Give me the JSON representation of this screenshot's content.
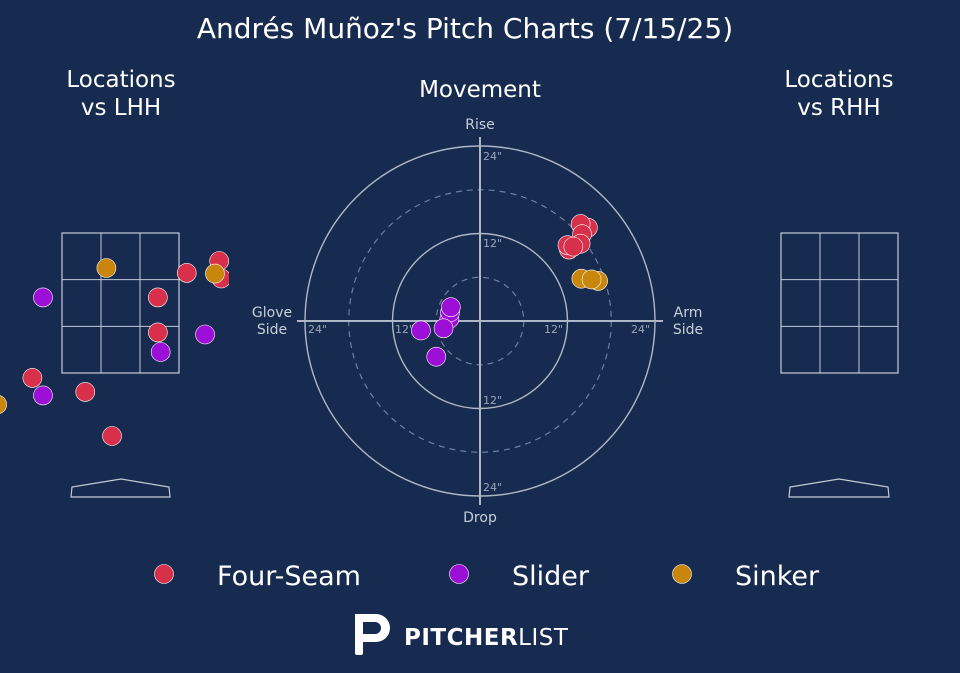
{
  "title": "Andrés Muñoz's Pitch Charts (7/15/25)",
  "colors": {
    "background": "#162b4f",
    "Four-Seam": "#d8304a",
    "Slider": "#9b0fd6",
    "Sinker": "#c8860c",
    "grid": "#c4cbd6",
    "label": "#c8cfdb"
  },
  "panels": {
    "lhh_title_line1": "Locations",
    "lhh_title_line2": "vs LHH",
    "movement_title": "Movement",
    "rhh_title_line1": "Locations",
    "rhh_title_line2": "vs RHH"
  },
  "movement_axes": {
    "top": "Rise",
    "bottom": "Drop",
    "left_line1": "Glove",
    "left_line2": "Side",
    "right_line1": "Arm",
    "right_line2": "Side",
    "rings_labels": [
      "12\"",
      "24\""
    ]
  },
  "legend": {
    "items": [
      {
        "name": "Four-Seam",
        "color": "#d8304a"
      },
      {
        "name": "Slider",
        "color": "#9b0fd6"
      },
      {
        "name": "Sinker",
        "color": "#c8860c"
      }
    ]
  },
  "brand": {
    "bold": "PITCHER",
    "light": "LIST"
  },
  "chart_data": [
    {
      "type": "scatter",
      "panel": "Locations vs LHH",
      "x_range": [
        -2.0,
        2.0
      ],
      "z_range": [
        -0.5,
        4.6
      ],
      "strike_zone": {
        "x": [
          -0.83,
          0.83
        ],
        "z": [
          1.5,
          3.5
        ]
      },
      "points": [
        {
          "pitch": "Four-Seam",
          "x": 1.4,
          "z": 3.1
        },
        {
          "pitch": "Four-Seam",
          "x": 1.43,
          "z": 2.85
        },
        {
          "pitch": "Four-Seam",
          "x": 0.94,
          "z": 2.93
        },
        {
          "pitch": "Four-Seam",
          "x": 0.53,
          "z": 2.58
        },
        {
          "pitch": "Four-Seam",
          "x": 0.53,
          "z": 2.08
        },
        {
          "pitch": "Four-Seam",
          "x": -1.25,
          "z": 1.43
        },
        {
          "pitch": "Four-Seam",
          "x": -0.5,
          "z": 1.23
        },
        {
          "pitch": "Four-Seam",
          "x": -0.12,
          "z": 0.6
        },
        {
          "pitch": "Slider",
          "x": -1.1,
          "z": 2.58
        },
        {
          "pitch": "Slider",
          "x": 1.2,
          "z": 2.05
        },
        {
          "pitch": "Slider",
          "x": 0.57,
          "z": 1.8
        },
        {
          "pitch": "Slider",
          "x": -1.1,
          "z": 1.18
        },
        {
          "pitch": "Sinker",
          "x": -0.2,
          "z": 3.0
        },
        {
          "pitch": "Sinker",
          "x": 1.34,
          "z": 2.92
        },
        {
          "pitch": "Sinker",
          "x": -1.75,
          "z": 1.05
        }
      ]
    },
    {
      "type": "scatter",
      "panel": "Movement",
      "x_label_left": "Glove Side",
      "x_label_right": "Arm Side",
      "y_label_top": "Rise",
      "y_label_bottom": "Drop",
      "range_inches": [
        -24,
        24
      ],
      "rings_inches": [
        6,
        12,
        18,
        24
      ],
      "points": [
        {
          "pitch": "Four-Seam",
          "x": 14.8,
          "y": 12.8
        },
        {
          "pitch": "Four-Seam",
          "x": 13.8,
          "y": 13.3
        },
        {
          "pitch": "Four-Seam",
          "x": 14.0,
          "y": 11.9
        },
        {
          "pitch": "Four-Seam",
          "x": 13.8,
          "y": 10.6
        },
        {
          "pitch": "Four-Seam",
          "x": 12.2,
          "y": 9.8
        },
        {
          "pitch": "Four-Seam",
          "x": 12.0,
          "y": 10.4
        },
        {
          "pitch": "Four-Seam",
          "x": 12.8,
          "y": 10.2
        },
        {
          "pitch": "Slider",
          "x": -4.2,
          "y": 0.3
        },
        {
          "pitch": "Slider",
          "x": -4.1,
          "y": 1.2
        },
        {
          "pitch": "Slider",
          "x": -4.0,
          "y": 1.9
        },
        {
          "pitch": "Slider",
          "x": -5.0,
          "y": -1.0
        },
        {
          "pitch": "Slider",
          "x": -8.1,
          "y": -1.3
        },
        {
          "pitch": "Slider",
          "x": -6.0,
          "y": -4.9
        },
        {
          "pitch": "Sinker",
          "x": 13.9,
          "y": 5.8
        },
        {
          "pitch": "Sinker",
          "x": 16.2,
          "y": 5.5
        },
        {
          "pitch": "Sinker",
          "x": 15.3,
          "y": 5.7
        }
      ]
    },
    {
      "type": "scatter",
      "panel": "Locations vs RHH",
      "x_range": [
        -2.0,
        2.0
      ],
      "z_range": [
        -0.5,
        4.6
      ],
      "strike_zone": {
        "x": [
          -0.83,
          0.83
        ],
        "z": [
          1.5,
          3.5
        ]
      },
      "points": []
    }
  ]
}
